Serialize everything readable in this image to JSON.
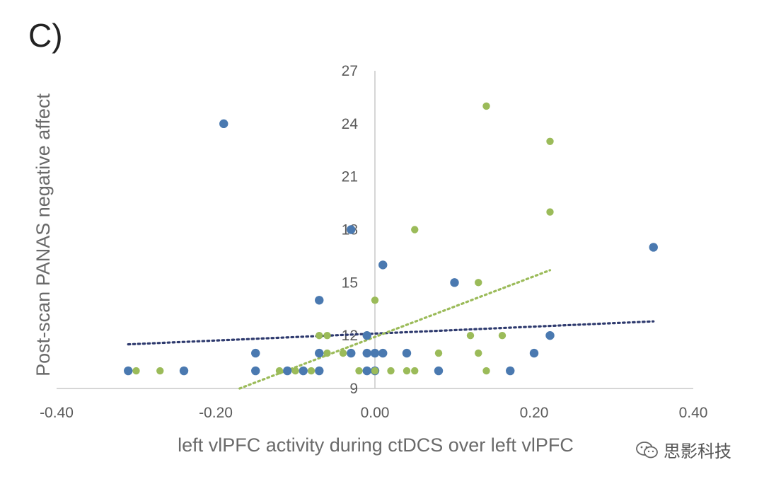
{
  "panel_label": "C)",
  "watermark": {
    "text": "思影科技",
    "icon": "wechat-icon"
  },
  "colors": {
    "blue": "#4a79b0",
    "green": "#9bbb59",
    "blue_trend": "#2e3a6e",
    "green_trend": "#9bbb59",
    "axis": "#c8c8c8"
  },
  "chart_data": {
    "type": "scatter",
    "title": "",
    "xlabel": "left vlPFC activity during ctDCS over left vlPFC",
    "ylabel": "Post-scan PANAS negative affect",
    "xlim": [
      -0.4,
      0.4
    ],
    "ylim": [
      9,
      27
    ],
    "x_ticks": [
      "-0.40",
      "-0.20",
      "0.00",
      "0.20",
      "0.40"
    ],
    "y_ticks": [
      "9",
      "12",
      "15",
      "18",
      "21",
      "24",
      "27"
    ],
    "grid": false,
    "series": [
      {
        "color": "#4a79b0",
        "x": [
          -0.31,
          -0.24,
          -0.19,
          -0.15,
          -0.15,
          -0.11,
          -0.09,
          -0.07,
          -0.07,
          -0.07,
          -0.03,
          -0.03,
          -0.01,
          -0.01,
          -0.01,
          0.0,
          0.0,
          0.01,
          0.01,
          0.04,
          0.08,
          0.1,
          0.17,
          0.2,
          0.22,
          0.35
        ],
        "y": [
          10,
          10,
          24,
          11,
          10,
          10,
          10,
          14,
          11,
          10,
          18,
          11,
          12,
          11,
          10,
          11,
          10,
          16,
          11,
          11,
          10,
          15,
          10,
          11,
          12,
          17
        ]
      },
      {
        "color": "#9bbb59",
        "x": [
          -0.3,
          -0.27,
          -0.12,
          -0.1,
          -0.08,
          -0.07,
          -0.06,
          -0.06,
          -0.04,
          -0.02,
          0.0,
          0.0,
          0.02,
          0.04,
          0.05,
          0.05,
          0.08,
          0.12,
          0.13,
          0.13,
          0.14,
          0.14,
          0.16,
          0.22,
          0.22
        ],
        "y": [
          10,
          10,
          10,
          10,
          10,
          12,
          12,
          11,
          11,
          10,
          14,
          10,
          10,
          10,
          10,
          18,
          11,
          12,
          15,
          11,
          25,
          10,
          12,
          23,
          19
        ]
      }
    ],
    "trendlines": [
      {
        "color": "#2e3a6e",
        "x": [
          -0.31,
          0.35
        ],
        "y": [
          11.5,
          12.8
        ]
      },
      {
        "color": "#9bbb59",
        "x": [
          -0.17,
          0.22
        ],
        "y": [
          9.0,
          15.7
        ]
      }
    ]
  }
}
